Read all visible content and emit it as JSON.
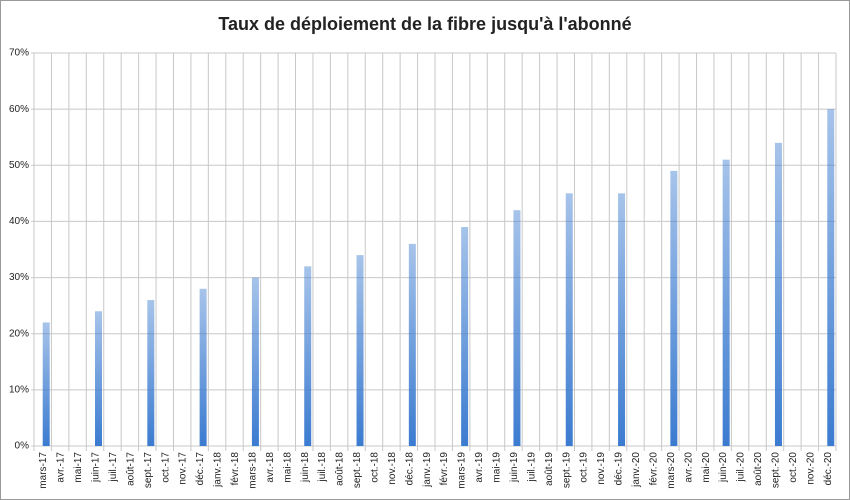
{
  "chart_data": {
    "type": "bar",
    "title": "Taux de déploiement de la fibre jusqu'à l'abonné",
    "categories": [
      "mars-17",
      "avr.-17",
      "mai-17",
      "juin-17",
      "juil.-17",
      "août-17",
      "sept.-17",
      "oct.-17",
      "nov.-17",
      "déc.-17",
      "janv.-18",
      "févr.-18",
      "mars-18",
      "avr.-18",
      "mai-18",
      "juin-18",
      "juil.-18",
      "août-18",
      "sept.-18",
      "oct.-18",
      "nov.-18",
      "déc.-18",
      "janv.-19",
      "févr.-19",
      "mars-19",
      "avr.-19",
      "mai-19",
      "juin-19",
      "juil.-19",
      "août-19",
      "sept.-19",
      "oct.-19",
      "nov.-19",
      "déc.-19",
      "janv.-20",
      "févr.-20",
      "mars-20",
      "avr.-20",
      "mai-20",
      "juin-20",
      "juil.-20",
      "août-20",
      "sept.-20",
      "oct.-20",
      "nov.-20",
      "déc.-20"
    ],
    "values": [
      22,
      null,
      null,
      24,
      null,
      null,
      26,
      null,
      null,
      28,
      null,
      null,
      30,
      null,
      null,
      32,
      null,
      null,
      34,
      null,
      null,
      36,
      null,
      null,
      39,
      null,
      null,
      42,
      null,
      null,
      45,
      null,
      null,
      45,
      null,
      null,
      49,
      null,
      null,
      51,
      null,
      null,
      54,
      null,
      null,
      60
    ],
    "color": "#3b7bd0",
    "ylim": [
      0,
      70
    ],
    "yticks": [
      {
        "value": 0,
        "label": "0%"
      },
      {
        "value": 10,
        "label": "10%"
      },
      {
        "value": 20,
        "label": "20%"
      },
      {
        "value": 30,
        "label": "30%"
      },
      {
        "value": 40,
        "label": "40%"
      },
      {
        "value": 50,
        "label": "50%"
      },
      {
        "value": 60,
        "label": "60%"
      },
      {
        "value": 70,
        "label": "70%"
      }
    ],
    "grid": true
  }
}
